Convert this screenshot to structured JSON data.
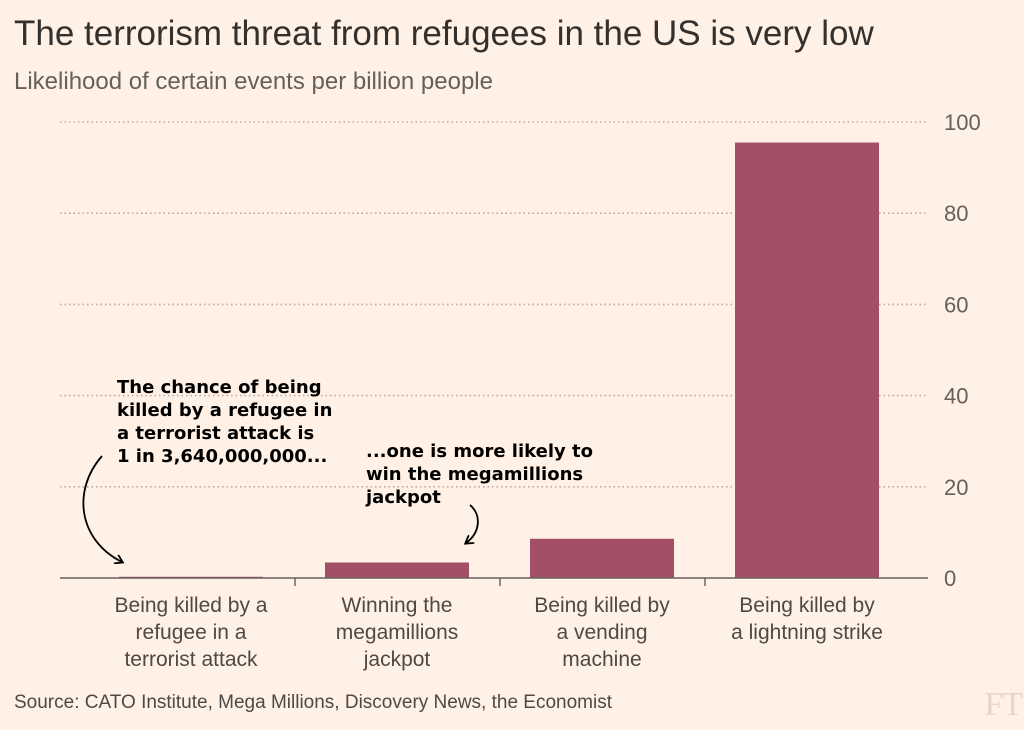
{
  "chart_data": {
    "type": "bar",
    "title": "The terrorism threat from refugees in the US is very low",
    "subtitle": "Likelihood of certain events per billion people",
    "categories": [
      [
        "Being killed by a",
        "refugee in a",
        "terrorist attack"
      ],
      [
        "Winning the",
        "megamillions",
        "jackpot"
      ],
      [
        "Being killed by",
        "a vending",
        "machine"
      ],
      [
        "Being killed by",
        "a lightning strike"
      ]
    ],
    "values": [
      0.27,
      3.4,
      8.6,
      95.5
    ],
    "ylim": [
      0,
      100
    ],
    "yticks": [
      0,
      20,
      40,
      60,
      80,
      100
    ],
    "gridlines": "dotted",
    "y_axis_position": "right",
    "colors": {
      "bar": "#a34f68",
      "background": "#fff1e5",
      "axis": "#66605c",
      "grid": "#b8aca3"
    },
    "annotations": [
      {
        "lines": [
          "The chance of being",
          "killed by a refugee in",
          "a terrorist attack is",
          "1 in 3,640,000,000..."
        ],
        "points_to": "Being killed by a refugee in a terrorist attack"
      },
      {
        "lines": [
          "...one is more likely to",
          "win the megamillions",
          "jackpot"
        ],
        "points_to": "Winning the megamillions jackpot"
      }
    ]
  },
  "source": "Source: CATO Institute, Mega Millions, Discovery News, the Economist",
  "logo": "FT"
}
